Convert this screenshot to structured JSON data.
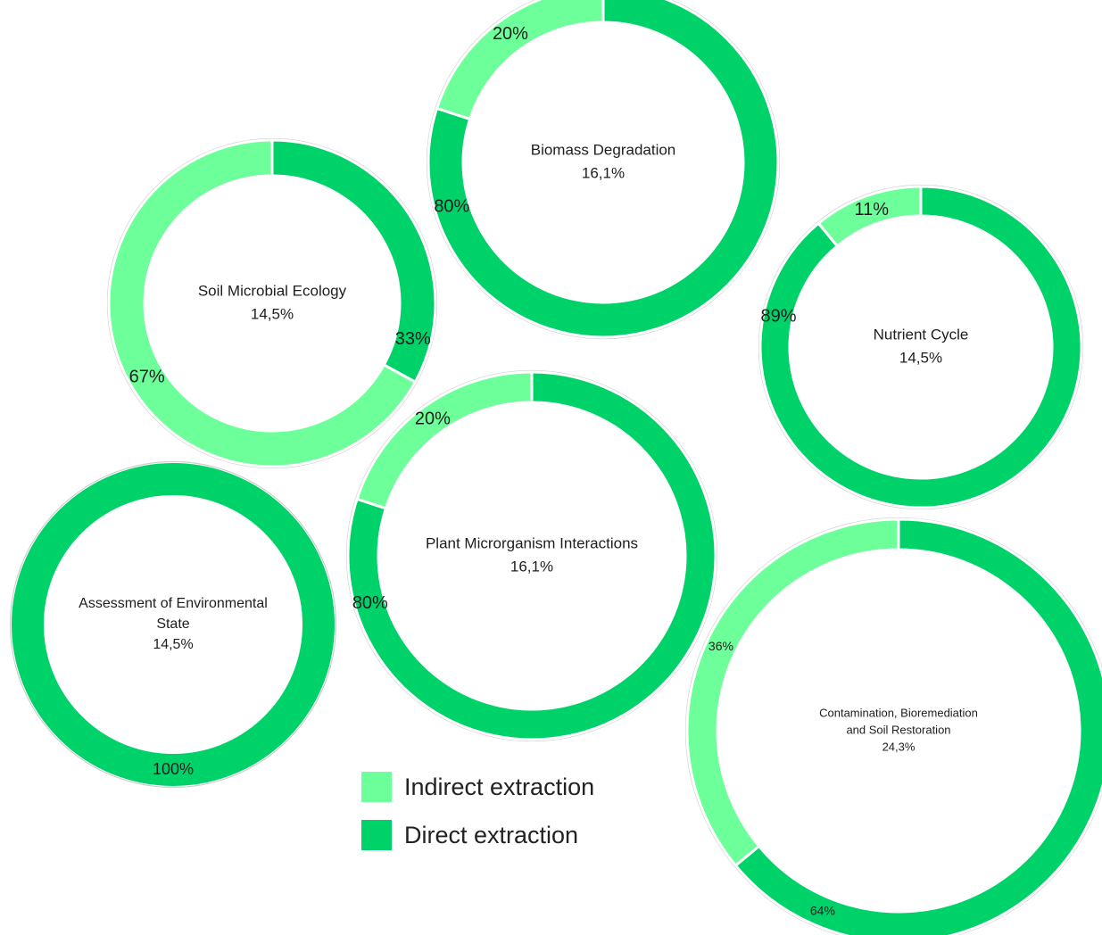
{
  "chart_data": {
    "type": "pie",
    "subtype": "donut",
    "legend_placement": "bottom-center",
    "series_colors": {
      "indirect": "#6dff9a",
      "direct": "#00d26a"
    },
    "legend": [
      {
        "key": "indirect",
        "label": "Indirect extraction"
      },
      {
        "key": "direct",
        "label": "Direct extraction"
      }
    ],
    "charts": [
      {
        "name": "Biomass Degradation",
        "name_lines": [
          "Biomass Degradation"
        ],
        "share": "16,1%",
        "slices": [
          {
            "key": "direct",
            "value": 80,
            "label": "80%"
          },
          {
            "key": "indirect",
            "value": 20,
            "label": "20%"
          }
        ]
      },
      {
        "name": "Soil Microbial Ecology",
        "name_lines": [
          "Soil Microbial Ecology"
        ],
        "share": "14,5%",
        "slices": [
          {
            "key": "direct",
            "value": 33,
            "label": "33%"
          },
          {
            "key": "indirect",
            "value": 67,
            "label": "67%"
          }
        ]
      },
      {
        "name": "Nutrient Cycle",
        "name_lines": [
          "Nutrient Cycle"
        ],
        "share": "14,5%",
        "slices": [
          {
            "key": "direct",
            "value": 89,
            "label": "89%"
          },
          {
            "key": "indirect",
            "value": 11,
            "label": "11%"
          }
        ]
      },
      {
        "name": "Plant Microrganism Interactions",
        "name_lines": [
          "Plant Microrganism Interactions"
        ],
        "share": "16,1%",
        "slices": [
          {
            "key": "direct",
            "value": 80,
            "label": "80%"
          },
          {
            "key": "indirect",
            "value": 20,
            "label": "20%"
          }
        ]
      },
      {
        "name": "Assessment of Environmental State",
        "name_lines": [
          "Assessment of Environmental",
          "State"
        ],
        "share": "14,5%",
        "slices": [
          {
            "key": "direct",
            "value": 100,
            "label": "100%"
          }
        ]
      },
      {
        "name": "Contamination, Bioremediation and Soil Restoration",
        "name_lines": [
          "Contamination, Bioremediation",
          "and Soil Restoration"
        ],
        "share": "24,3%",
        "slices": [
          {
            "key": "direct",
            "value": 64,
            "label": "64%"
          },
          {
            "key": "indirect",
            "value": 36,
            "label": "36%"
          }
        ]
      }
    ]
  }
}
